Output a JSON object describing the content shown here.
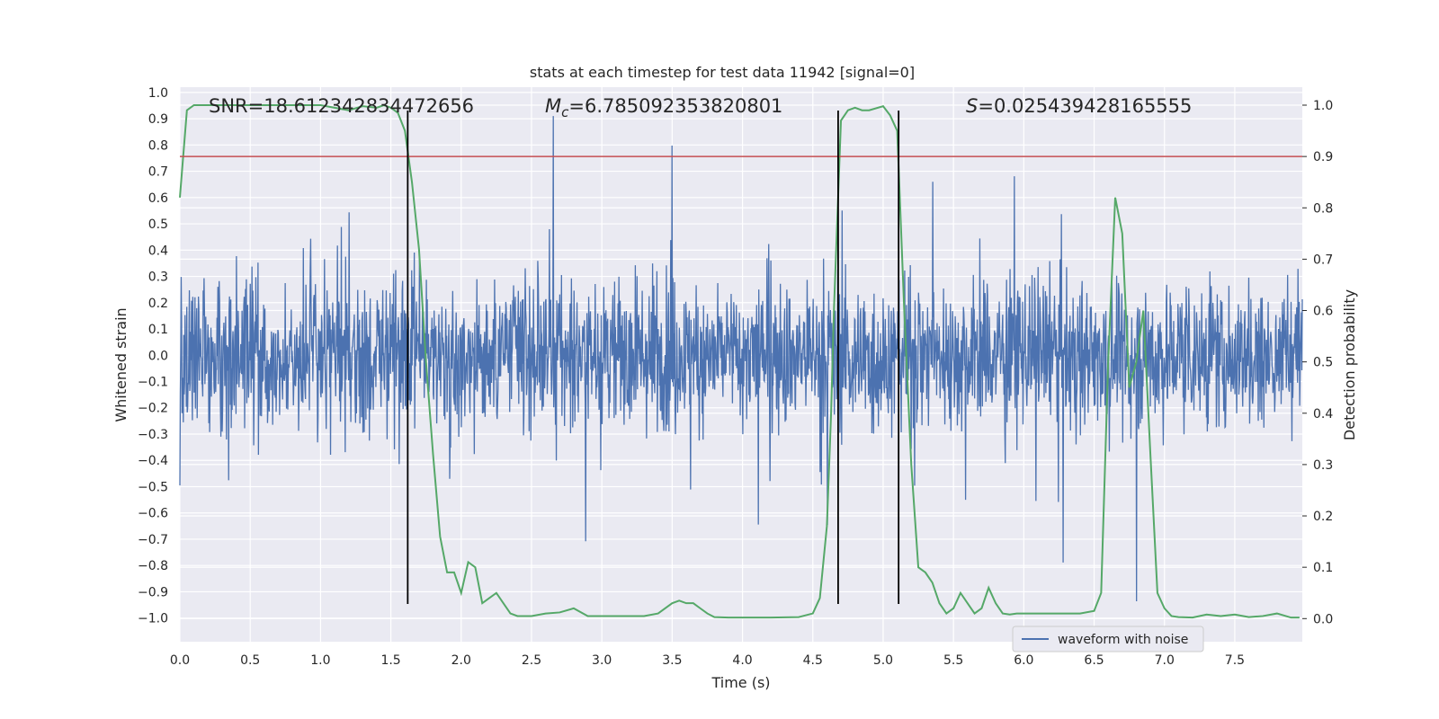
{
  "chart_data": {
    "type": "line",
    "title": "stats at each timestep for test data 11942 [signal=0]",
    "xlabel": "Time (s)",
    "ylabel_left": "Whitened strain",
    "ylabel_right": "Detection probability",
    "xlim": [
      0.0,
      7.98
    ],
    "ylim_left": [
      -1.09,
      1.02
    ],
    "ylim_right": [
      -0.045,
      1.035
    ],
    "x_ticks": [
      "0.0",
      "0.5",
      "1.0",
      "1.5",
      "2.0",
      "2.5",
      "3.0",
      "3.5",
      "4.0",
      "4.5",
      "5.0",
      "5.5",
      "6.0",
      "6.5",
      "7.0",
      "7.5"
    ],
    "y_left_ticks": [
      "1.0",
      "0.9",
      "0.8",
      "0.7",
      "0.6",
      "0.5",
      "0.4",
      "0.3",
      "0.2",
      "0.1",
      "0.0",
      "−0.1",
      "−0.2",
      "−0.3",
      "−0.4",
      "−0.5",
      "−0.6",
      "−0.7",
      "−0.8",
      "−0.9",
      "−1.0"
    ],
    "y_right_ticks": [
      "1.0",
      "0.9",
      "0.8",
      "0.7",
      "0.6",
      "0.5",
      "0.4",
      "0.3",
      "0.2",
      "0.1",
      "0.0"
    ],
    "grid": true,
    "legend_position": "lower-right",
    "annotations": {
      "snr": "SNR=18.612342834472656",
      "mc_symbol": "M",
      "mc_sub": "c",
      "mc_value": "=6.785092353820801",
      "s_symbol": "S",
      "s_value": "=0.025439428165555"
    },
    "threshold": 0.9,
    "vlines_x": [
      1.62,
      4.68,
      5.11
    ],
    "series": [
      {
        "name": "waveform with noise",
        "color": "#4c72b0",
        "axis": "left",
        "kind": "noise",
        "envelope": 0.35,
        "peak_range": [
          -0.98,
          0.98
        ]
      },
      {
        "color": "#55a868",
        "axis": "right",
        "x": [
          0.0,
          0.05,
          0.1,
          0.15,
          0.2,
          0.3,
          0.5,
          0.7,
          0.9,
          1.0,
          1.1,
          1.2,
          1.3,
          1.4,
          1.45,
          1.5,
          1.55,
          1.6,
          1.65,
          1.7,
          1.75,
          1.8,
          1.85,
          1.9,
          1.95,
          2.0,
          2.05,
          2.1,
          2.15,
          2.2,
          2.25,
          2.3,
          2.35,
          2.4,
          2.5,
          2.6,
          2.7,
          2.8,
          2.9,
          3.0,
          3.1,
          3.2,
          3.3,
          3.4,
          3.5,
          3.55,
          3.6,
          3.65,
          3.7,
          3.75,
          3.8,
          3.9,
          4.0,
          4.2,
          4.4,
          4.5,
          4.55,
          4.6,
          4.63,
          4.65,
          4.7,
          4.75,
          4.8,
          4.85,
          4.9,
          5.0,
          5.05,
          5.1,
          5.15,
          5.2,
          5.25,
          5.3,
          5.35,
          5.4,
          5.45,
          5.5,
          5.55,
          5.6,
          5.65,
          5.7,
          5.75,
          5.8,
          5.85,
          5.9,
          5.95,
          6.0,
          6.05,
          6.1,
          6.2,
          6.3,
          6.4,
          6.5,
          6.55,
          6.6,
          6.65,
          6.7,
          6.75,
          6.8,
          6.85,
          6.9,
          6.95,
          7.0,
          7.05,
          7.1,
          7.2,
          7.3,
          7.4,
          7.5,
          7.6,
          7.7,
          7.8,
          7.9,
          7.96
        ],
        "y": [
          0.82,
          0.99,
          1.0,
          1.0,
          1.0,
          1.0,
          1.0,
          1.0,
          1.0,
          1.0,
          0.995,
          0.99,
          0.998,
          0.995,
          1.0,
          0.995,
          0.985,
          0.95,
          0.85,
          0.72,
          0.5,
          0.32,
          0.16,
          0.09,
          0.09,
          0.05,
          0.11,
          0.1,
          0.03,
          0.04,
          0.05,
          0.03,
          0.01,
          0.005,
          0.005,
          0.01,
          0.012,
          0.02,
          0.005,
          0.005,
          0.005,
          0.005,
          0.005,
          0.01,
          0.03,
          0.035,
          0.03,
          0.03,
          0.02,
          0.01,
          0.003,
          0.002,
          0.002,
          0.002,
          0.003,
          0.01,
          0.04,
          0.18,
          0.4,
          0.6,
          0.97,
          0.99,
          0.995,
          0.99,
          0.99,
          0.998,
          0.98,
          0.95,
          0.6,
          0.3,
          0.1,
          0.09,
          0.07,
          0.03,
          0.01,
          0.02,
          0.05,
          0.03,
          0.01,
          0.02,
          0.06,
          0.03,
          0.01,
          0.008,
          0.01,
          0.01,
          0.01,
          0.01,
          0.01,
          0.01,
          0.01,
          0.015,
          0.05,
          0.5,
          0.82,
          0.75,
          0.45,
          0.5,
          0.6,
          0.32,
          0.05,
          0.02,
          0.005,
          0.003,
          0.002,
          0.008,
          0.005,
          0.008,
          0.003,
          0.005,
          0.01,
          0.002,
          0.002
        ]
      },
      {
        "name": "threshold",
        "color": "#c44e52",
        "axis": "right",
        "y_const": 0.9
      }
    ]
  }
}
